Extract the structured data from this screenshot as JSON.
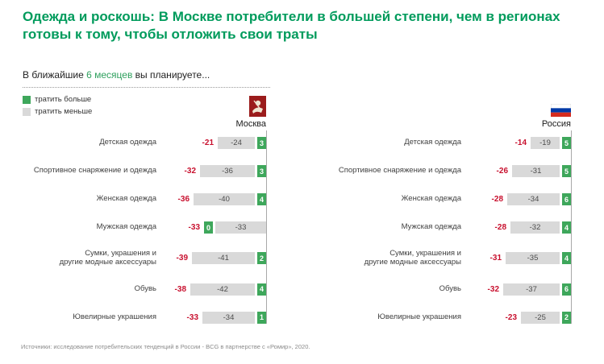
{
  "title": "Одежда и роскошь: В Москве потребители в большей степени, чем в регионах готовы к тому, чтобы отложить свои траты",
  "subtitle": {
    "prefix": "В ближайшие ",
    "highlight": "6 месяцев",
    "suffix": " вы планируете..."
  },
  "legend": [
    {
      "label": "тратить больше",
      "color": "#3ea75b"
    },
    {
      "label": "тратить меньше",
      "color": "#d9d9d9"
    }
  ],
  "source": "Источники: исследование потребительских тенденций в России - BCG в партнерстве с «Ромир», 2020.",
  "colors": {
    "title_green": "#009b5c",
    "spend_more_green": "#3ea75b",
    "spend_less_gray": "#d9d9d9",
    "net_red": "#c8102e",
    "axis_gray": "#a9a9a9"
  },
  "chart_data": [
    {
      "type": "bar",
      "region": "Москва",
      "flag": "moscow-coat-of-arms",
      "series_labels": [
        "тратить больше",
        "тратить меньше"
      ],
      "units": "percent",
      "rows": [
        {
          "category": "Детская одежда",
          "net": -21,
          "less": -24,
          "more": 3
        },
        {
          "category": "Спортивное снаряжение и одежда",
          "net": -32,
          "less": -36,
          "more": 3
        },
        {
          "category": "Женская одежда",
          "net": -36,
          "less": -40,
          "more": 4
        },
        {
          "category": "Мужская одежда",
          "net": -33,
          "less": -33,
          "more": 0
        },
        {
          "category": "Сумки, украшения и\nдругие модные аксессуары",
          "net": -39,
          "less": -41,
          "more": 2
        },
        {
          "category": "Обувь",
          "net": -38,
          "less": -42,
          "more": 4
        },
        {
          "category": "Ювелирные украшения",
          "net": -33,
          "less": -34,
          "more": 1
        }
      ]
    },
    {
      "type": "bar",
      "region": "Россия",
      "flag": "russia-flag",
      "series_labels": [
        "тратить больше",
        "тратить меньше"
      ],
      "units": "percent",
      "rows": [
        {
          "category": "Детская одежда",
          "net": -14,
          "less": -19,
          "more": 5
        },
        {
          "category": "Спортивное снаряжение и одежда",
          "net": -26,
          "less": -31,
          "more": 5
        },
        {
          "category": "Женская одежда",
          "net": -28,
          "less": -34,
          "more": 6
        },
        {
          "category": "Мужская одежда",
          "net": -28,
          "less": -32,
          "more": 4
        },
        {
          "category": "Сумки, украшения и\nдругие модные аксессуары",
          "net": -31,
          "less": -35,
          "more": 4
        },
        {
          "category": "Обувь",
          "net": -32,
          "less": -37,
          "more": 6
        },
        {
          "category": "Ювелирные украшения",
          "net": -23,
          "less": -25,
          "more": 2
        }
      ]
    }
  ]
}
